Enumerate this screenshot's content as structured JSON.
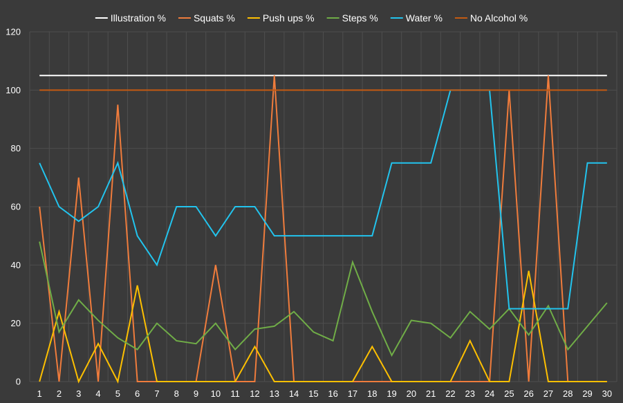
{
  "chart_data": {
    "type": "line",
    "title": "",
    "xlabel": "",
    "ylabel": "",
    "ylim": [
      0,
      120
    ],
    "yticks": [
      0,
      20,
      40,
      60,
      80,
      100,
      120
    ],
    "grid": true,
    "legend_position": "top-center",
    "x": [
      1,
      2,
      3,
      4,
      5,
      6,
      7,
      8,
      9,
      10,
      11,
      12,
      13,
      14,
      15,
      16,
      17,
      18,
      19,
      20,
      21,
      22,
      23,
      24,
      25,
      26,
      27,
      28,
      29,
      30
    ],
    "x_tick_labels": [
      "1",
      "2",
      "3",
      "4",
      "5",
      "6",
      "7",
      "8",
      "9",
      "10",
      "11",
      "12",
      "13",
      "14",
      "15",
      "16",
      "17",
      "18",
      "19",
      "20",
      "21",
      "22",
      "23",
      "24",
      "25",
      "26",
      "27",
      "28",
      "29",
      "30"
    ],
    "y_tick_labels": [
      "0",
      "20",
      "40",
      "60",
      "80",
      "100",
      "120"
    ],
    "series": [
      {
        "name": "Illustration %",
        "color": "#ffffff",
        "values": [
          105,
          105,
          105,
          105,
          105,
          105,
          105,
          105,
          105,
          105,
          105,
          105,
          105,
          105,
          105,
          105,
          105,
          105,
          105,
          105,
          105,
          105,
          105,
          105,
          105,
          105,
          105,
          105,
          105,
          105
        ]
      },
      {
        "name": "Squats %",
        "color": "#f07c3c",
        "values": [
          60,
          0,
          70,
          0,
          95,
          0,
          0,
          0,
          0,
          40,
          0,
          0,
          105,
          0,
          0,
          0,
          0,
          0,
          0,
          0,
          0,
          0,
          0,
          0,
          100,
          0,
          105,
          0,
          0,
          0
        ]
      },
      {
        "name": "Push ups %",
        "color": "#ffc000",
        "values": [
          0,
          24,
          0,
          13,
          0,
          33,
          0,
          0,
          0,
          0,
          0,
          12,
          0,
          0,
          0,
          0,
          0,
          12,
          0,
          0,
          0,
          0,
          14,
          0,
          0,
          38,
          0,
          0,
          0,
          0
        ]
      },
      {
        "name": "Steps %",
        "color": "#70ad47",
        "values": [
          48,
          17,
          28,
          21,
          15,
          11,
          20,
          14,
          13,
          20,
          11,
          18,
          19,
          24,
          17,
          14,
          41,
          24,
          9,
          21,
          20,
          15,
          24,
          18,
          25,
          16,
          26,
          11,
          19,
          27
        ]
      },
      {
        "name": "Water %",
        "color": "#22c4ee",
        "values": [
          75,
          60,
          55,
          60,
          75,
          50,
          40,
          60,
          60,
          50,
          60,
          60,
          50,
          50,
          50,
          50,
          50,
          50,
          75,
          75,
          75,
          100,
          100,
          100,
          25,
          25,
          25,
          25,
          75,
          75
        ]
      },
      {
        "name": "No Alcohol %",
        "color": "#c55a11",
        "values": [
          100,
          100,
          100,
          100,
          100,
          100,
          100,
          100,
          100,
          100,
          100,
          100,
          100,
          100,
          100,
          100,
          100,
          100,
          100,
          100,
          100,
          100,
          100,
          100,
          100,
          100,
          100,
          100,
          100,
          100
        ]
      }
    ]
  }
}
